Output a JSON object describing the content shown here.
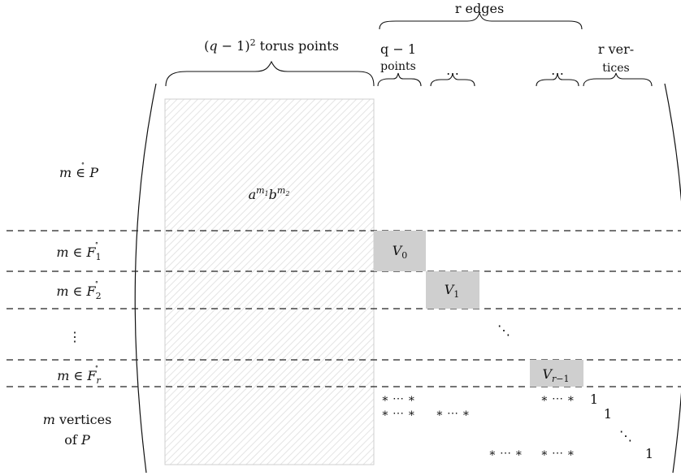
{
  "header": {
    "edges_label": "r edges",
    "torus_label": "(q − 1)² torus points",
    "edge_points_line1": "q − 1",
    "edge_points_line2": "points",
    "dots1": "⋯",
    "dots2": "⋯",
    "vertices_line1": "r ver-",
    "vertices_line2": "tices"
  },
  "rows": {
    "interior": "m ∈ P̊",
    "face1": "m ∈ F̊₁",
    "face2": "m ∈ F̊₂",
    "vdots": "⋮",
    "facer": "m ∈ F̊ᵣ",
    "vertices_line1": "m vertices",
    "vertices_line2": "of P"
  },
  "matrix": {
    "torus_entry": "a^{m₁}b^{m₂}",
    "blocks": [
      "V₀",
      "V₁",
      "V_{r−1}"
    ],
    "ddots": "⋱",
    "stars_row1_a": "∗ ⋯ ∗",
    "stars_row1_b": "∗ ⋯ ∗",
    "stars_row2_a": "∗ ⋯ ∗",
    "stars_row2_b": "∗ ⋯ ∗",
    "stars_row3_a": "∗ ⋯ ∗",
    "stars_row3_b": "∗ ⋯ ∗",
    "one": "1",
    "ddots_small": "⋱"
  }
}
